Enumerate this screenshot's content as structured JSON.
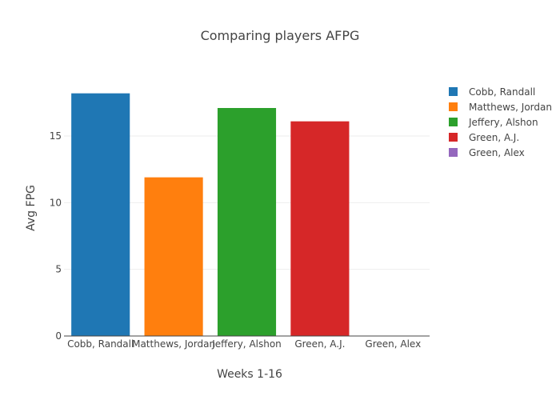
{
  "chart_data": {
    "type": "bar",
    "title": "Comparing players AFPG",
    "xlabel": "Weeks 1-16",
    "ylabel": "Avg FPG",
    "categories": [
      "Cobb, Randall",
      "Matthews, Jordan",
      "Jeffery, Alshon",
      "Green, A.J.",
      "Green, Alex"
    ],
    "series": [
      {
        "name": "Cobb, Randall",
        "color": "#1f77b4",
        "values": [
          18.2,
          null,
          null,
          null,
          null
        ]
      },
      {
        "name": "Matthews, Jordan",
        "color": "#ff7f0e",
        "values": [
          null,
          11.9,
          null,
          null,
          null
        ]
      },
      {
        "name": "Jeffery, Alshon",
        "color": "#2ca02c",
        "values": [
          null,
          null,
          17.1,
          null,
          null
        ]
      },
      {
        "name": "Green, A.J.",
        "color": "#d62728",
        "values": [
          null,
          null,
          null,
          16.1,
          null
        ]
      },
      {
        "name": "Green, Alex",
        "color": "#9467bd",
        "values": [
          null,
          null,
          null,
          null,
          0
        ]
      }
    ],
    "ylim": [
      0,
      19.2
    ],
    "yticks": [
      0,
      5,
      10,
      15
    ],
    "grid": true,
    "legend": "right"
  }
}
